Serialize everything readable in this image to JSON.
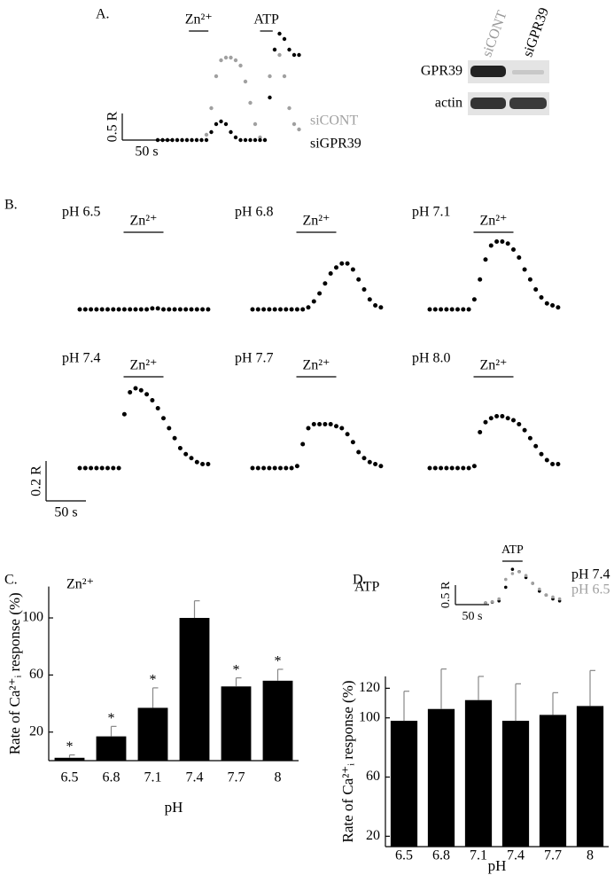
{
  "panel_labels": [
    "A.",
    "B.",
    "C.",
    "D."
  ],
  "blot": {
    "lanes": [
      "siCONT",
      "siGPR39"
    ],
    "rows": [
      "GPR39",
      "actin"
    ]
  },
  "chart_data": [
    {
      "type": "trace",
      "legend": true,
      "dt": 5,
      "stimuli": [
        {
          "label": "Zn²⁺",
          "start": 32,
          "end": 52
        },
        {
          "label": "ATP",
          "start": 105,
          "end": 118
        }
      ],
      "scale_y": {
        "value": 0.5,
        "label": "0.5 R"
      },
      "scale_x": {
        "value": 50,
        "label": "50 s"
      },
      "series": [
        {
          "name": "siCONT",
          "color": "#a0a0a0",
          "values": [
            0,
            0,
            0,
            0,
            0,
            0,
            0,
            0,
            0,
            0,
            0.1,
            0.6,
            1.2,
            1.5,
            1.55,
            1.55,
            1.5,
            1.4,
            1.1,
            0.7,
            0.3,
            0.05,
            0,
            1.2,
            1.7,
            1.6,
            1.2,
            0.6,
            0.3,
            0.2
          ]
        },
        {
          "name": "siGPR39",
          "color": "#000000",
          "values": [
            0,
            0,
            0,
            0,
            0,
            0,
            0,
            0,
            0,
            0,
            0,
            0.15,
            0.3,
            0.35,
            0.3,
            0.15,
            0.05,
            0,
            0,
            0,
            0,
            0,
            0,
            0.8,
            1.7,
            2.0,
            1.9,
            1.7,
            1.6,
            1.6
          ]
        }
      ]
    },
    {
      "type": "trace",
      "legend": false,
      "dt": 7,
      "stimuli": [
        {
          "label": "Zn²⁺",
          "start": 55,
          "end": 105
        }
      ],
      "scale_y": {
        "value": 0.2,
        "label": "0.2 R"
      },
      "scale_x": {
        "value": 50,
        "label": "50 s"
      },
      "series": [
        {
          "name": "pH 6.5",
          "color": "#000000",
          "values": [
            0,
            0,
            0,
            0,
            0,
            0,
            0,
            0,
            0,
            0,
            0,
            0,
            0,
            0.005,
            0.005,
            0,
            0,
            0,
            0,
            0,
            0,
            0,
            0,
            0
          ]
        },
        {
          "name": "pH 6.8",
          "color": "#000000",
          "values": [
            0,
            0,
            0,
            0,
            0,
            0,
            0,
            0,
            0,
            0,
            0.01,
            0.04,
            0.08,
            0.13,
            0.18,
            0.21,
            0.23,
            0.23,
            0.2,
            0.15,
            0.1,
            0.05,
            0.02,
            0.01
          ]
        },
        {
          "name": "pH 7.1",
          "color": "#000000",
          "values": [
            0,
            0,
            0,
            0,
            0,
            0,
            0,
            0,
            0.05,
            0.15,
            0.25,
            0.32,
            0.34,
            0.34,
            0.33,
            0.3,
            0.26,
            0.2,
            0.15,
            0.1,
            0.06,
            0.03,
            0.02,
            0.01
          ]
        },
        {
          "name": "pH 7.4",
          "color": "#000000",
          "values": [
            0,
            0,
            0,
            0,
            0,
            0,
            0,
            0,
            0.27,
            0.38,
            0.4,
            0.39,
            0.37,
            0.34,
            0.3,
            0.25,
            0.2,
            0.15,
            0.1,
            0.07,
            0.05,
            0.03,
            0.02,
            0.02
          ]
        },
        {
          "name": "pH 7.7",
          "color": "#000000",
          "values": [
            0,
            0,
            0,
            0,
            0,
            0,
            0,
            0,
            0.01,
            0.12,
            0.2,
            0.22,
            0.22,
            0.22,
            0.22,
            0.21,
            0.2,
            0.17,
            0.13,
            0.08,
            0.05,
            0.03,
            0.02,
            0.01
          ]
        },
        {
          "name": "pH 8.0",
          "color": "#000000",
          "values": [
            0,
            0,
            0,
            0,
            0,
            0,
            0,
            0,
            0.01,
            0.18,
            0.23,
            0.25,
            0.26,
            0.26,
            0.25,
            0.24,
            0.22,
            0.19,
            0.15,
            0.11,
            0.07,
            0.04,
            0.02,
            0.02
          ]
        }
      ]
    },
    {
      "type": "bar",
      "title": "Zn²⁺",
      "categories": [
        "6.5",
        "6.8",
        "7.1",
        "7.4",
        "7.7",
        "8"
      ],
      "values": [
        2,
        17,
        37,
        100,
        52,
        56
      ],
      "errors": [
        2,
        7,
        14,
        12,
        6,
        8
      ],
      "significance": [
        "*",
        "*",
        "*",
        null,
        "*",
        "*"
      ],
      "color": "#000000",
      "xlabel": "pH",
      "ylabel": "Rate of Ca²⁺ᵢ response (%)",
      "ylim": [
        0,
        122
      ],
      "yticks": [
        20,
        60,
        100
      ]
    },
    {
      "type": "trace",
      "legend": true,
      "dt": 10,
      "stimuli": [
        {
          "label": "ATP",
          "start": 25,
          "end": 55
        }
      ],
      "scale_y": {
        "value": 0.5,
        "label": "0.5 R"
      },
      "scale_x": {
        "value": 50,
        "label": "50 s"
      },
      "series": [
        {
          "name": "pH 7.4",
          "color": "#000000",
          "values": [
            0,
            0.02,
            0.05,
            0.4,
            0.86,
            0.8,
            0.65,
            0.5,
            0.3,
            0.2,
            0.1,
            0.05
          ]
        },
        {
          "name": "pH 6.5",
          "color": "#a0a0a0",
          "values": [
            0,
            0.03,
            0.1,
            0.6,
            0.75,
            0.8,
            0.7,
            0.5,
            0.35,
            0.2,
            0.15,
            0.1
          ]
        }
      ]
    },
    {
      "type": "bar",
      "title": "ATP",
      "categories": [
        "6.5",
        "6.8",
        "7.1",
        "7.4",
        "7.7",
        "8"
      ],
      "values": [
        98,
        106,
        112,
        98,
        102,
        108
      ],
      "errors": [
        20,
        27,
        16,
        25,
        15,
        24
      ],
      "color": "#000000",
      "xlabel": "pH",
      "ylabel": "Rate of Ca²⁺ᵢ response (%)",
      "ylim": [
        13,
        128
      ],
      "yticks": [
        20,
        60,
        100,
        120
      ]
    }
  ]
}
